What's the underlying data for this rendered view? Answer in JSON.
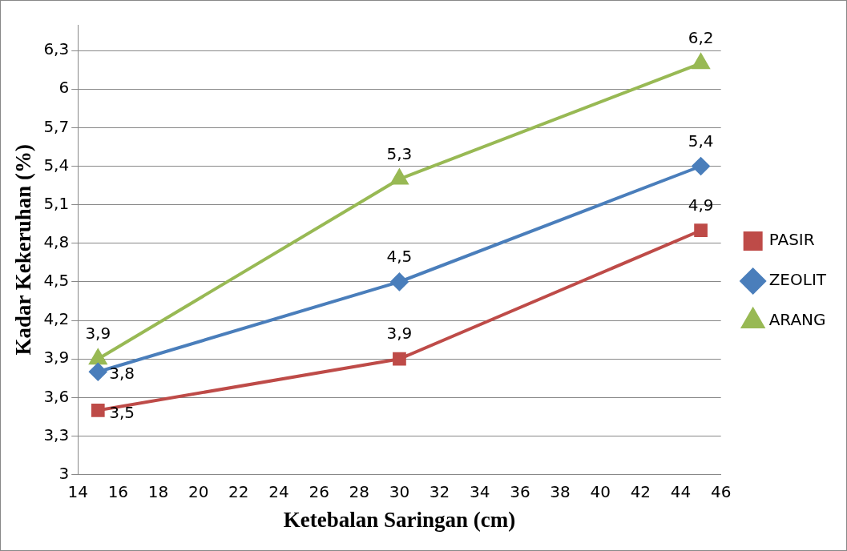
{
  "chart_data": {
    "type": "line",
    "xlabel": "Ketebalan Saringan (cm)",
    "ylabel": "Kadar Kekeruhan (%)",
    "x": [
      15,
      30,
      45
    ],
    "series": [
      {
        "name": "PASIR",
        "color": "#be4b48",
        "marker": "square",
        "values": [
          3.5,
          3.9,
          4.9
        ],
        "value_labels": [
          "3,5",
          "3,9",
          "4,9"
        ]
      },
      {
        "name": "ZEOLIT",
        "color": "#4a7ebb",
        "marker": "diamond",
        "values": [
          3.8,
          4.5,
          5.4
        ],
        "value_labels": [
          "3,8",
          "4,5",
          "5,4"
        ]
      },
      {
        "name": "ARANG",
        "color": "#98b954",
        "marker": "triangle",
        "values": [
          3.9,
          5.3,
          6.2
        ],
        "value_labels": [
          "3,9",
          "5,3",
          "6,2"
        ]
      }
    ],
    "xlim": [
      14,
      46
    ],
    "xticks": [
      14,
      16,
      18,
      20,
      22,
      24,
      26,
      28,
      30,
      32,
      34,
      36,
      38,
      40,
      42,
      44,
      46
    ],
    "ylim": [
      3,
      6.5
    ],
    "yticks": [
      3,
      {
        "value": 3.3,
        "label": "3,3"
      },
      {
        "value": 3.6,
        "label": "3,6"
      },
      {
        "value": 3.9,
        "label": "3,9"
      },
      {
        "value": 4.2,
        "label": "4,2"
      },
      {
        "value": 4.5,
        "label": "4,5"
      },
      {
        "value": 4.8,
        "label": "4,8"
      },
      {
        "value": 5.1,
        "label": "5,1"
      },
      {
        "value": 5.4,
        "label": "5,4"
      },
      {
        "value": 5.7,
        "label": "5,7"
      },
      6,
      {
        "value": 6.3,
        "label": "6,3"
      }
    ],
    "grid": "y",
    "legend": "right",
    "line_style": "solid"
  }
}
